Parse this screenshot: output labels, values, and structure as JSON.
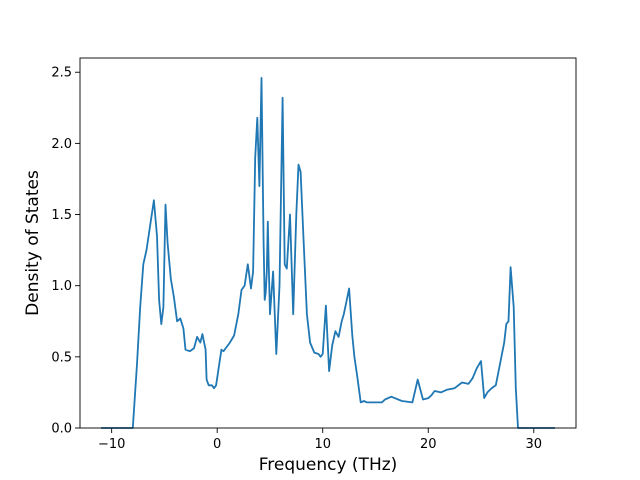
{
  "chart_data": {
    "type": "line",
    "title": "",
    "xlabel": "Frequency (THz)",
    "ylabel": "Density of States",
    "xlim": [
      -13,
      34
    ],
    "ylim": [
      0,
      2.6
    ],
    "x_ticks": [
      -10,
      0,
      10,
      20,
      30
    ],
    "x_tick_labels": [
      "−10",
      "0",
      "10",
      "20",
      "30"
    ],
    "y_ticks": [
      0.0,
      0.5,
      1.0,
      1.5,
      2.0,
      2.5
    ],
    "y_tick_labels": [
      "0.0",
      "0.5",
      "1.0",
      "1.5",
      "2.0",
      "2.5"
    ],
    "grid": false,
    "legend": "none",
    "color": "#1f77b4",
    "series": [
      {
        "x": [
          -11,
          -8,
          -7.6,
          -7.3,
          -7.0,
          -6.7,
          -6.3,
          -6.0,
          -5.7,
          -5.5,
          -5.3,
          -5.1,
          -4.9,
          -4.7,
          -4.4,
          -4.1,
          -3.8,
          -3.5,
          -3.2,
          -3.0,
          -2.6,
          -2.2,
          -1.9,
          -1.6,
          -1.4,
          -1.1,
          -1.0,
          -0.8,
          -0.5,
          -0.3,
          -0.1,
          0.1,
          0.4,
          0.6,
          0.9,
          1.2,
          1.6,
          2.0,
          2.3,
          2.6,
          2.9,
          3.2,
          3.4,
          3.6,
          3.8,
          4.0,
          4.2,
          4.4,
          4.5,
          4.6,
          4.7,
          4.8,
          4.9,
          5.0,
          5.3,
          5.6,
          5.9,
          6.2,
          6.4,
          6.6,
          6.9,
          7.2,
          7.5,
          7.7,
          7.9,
          8.2,
          8.5,
          8.8,
          9.2,
          9.6,
          9.8,
          10.0,
          10.3,
          10.6,
          10.9,
          11.2,
          11.5,
          11.8,
          12.0,
          12.2,
          12.5,
          12.8,
          13.0,
          13.3,
          13.6,
          13.9,
          14.2,
          14.6,
          14.9,
          15.3,
          15.6,
          15.9,
          16.5,
          17.5,
          18.5,
          19.0,
          19.5,
          20.0,
          20.3,
          20.6,
          21.2,
          21.8,
          22.5,
          23.2,
          23.8,
          24.2,
          24.6,
          25.0,
          25.3,
          25.6,
          26.0,
          26.4,
          26.8,
          27.2,
          27.4,
          27.6,
          27.8,
          28.1,
          28.3,
          28.5,
          29.0,
          30.0,
          32.0
        ],
        "y": [
          0.0,
          0.0,
          0.45,
          0.85,
          1.15,
          1.25,
          1.45,
          1.6,
          1.35,
          0.9,
          0.73,
          0.85,
          1.57,
          1.3,
          1.05,
          0.92,
          0.75,
          0.77,
          0.7,
          0.55,
          0.54,
          0.56,
          0.64,
          0.6,
          0.66,
          0.55,
          0.34,
          0.3,
          0.3,
          0.28,
          0.3,
          0.4,
          0.55,
          0.54,
          0.57,
          0.6,
          0.65,
          0.8,
          0.97,
          1.0,
          1.15,
          0.98,
          1.1,
          1.9,
          2.18,
          1.7,
          2.46,
          1.3,
          0.9,
          0.95,
          1.1,
          1.45,
          1.1,
          0.8,
          1.1,
          0.52,
          1.0,
          2.32,
          1.15,
          1.12,
          1.5,
          0.8,
          1.5,
          1.85,
          1.8,
          1.3,
          0.8,
          0.6,
          0.53,
          0.52,
          0.5,
          0.52,
          0.86,
          0.4,
          0.58,
          0.68,
          0.64,
          0.75,
          0.8,
          0.87,
          0.98,
          0.65,
          0.5,
          0.35,
          0.18,
          0.19,
          0.18,
          0.18,
          0.18,
          0.18,
          0.18,
          0.2,
          0.22,
          0.19,
          0.18,
          0.34,
          0.2,
          0.21,
          0.23,
          0.26,
          0.25,
          0.27,
          0.28,
          0.32,
          0.31,
          0.35,
          0.42,
          0.47,
          0.21,
          0.25,
          0.28,
          0.3,
          0.45,
          0.6,
          0.73,
          0.75,
          1.13,
          0.85,
          0.28,
          0.0,
          0.0,
          0.0,
          0.0
        ]
      }
    ]
  }
}
